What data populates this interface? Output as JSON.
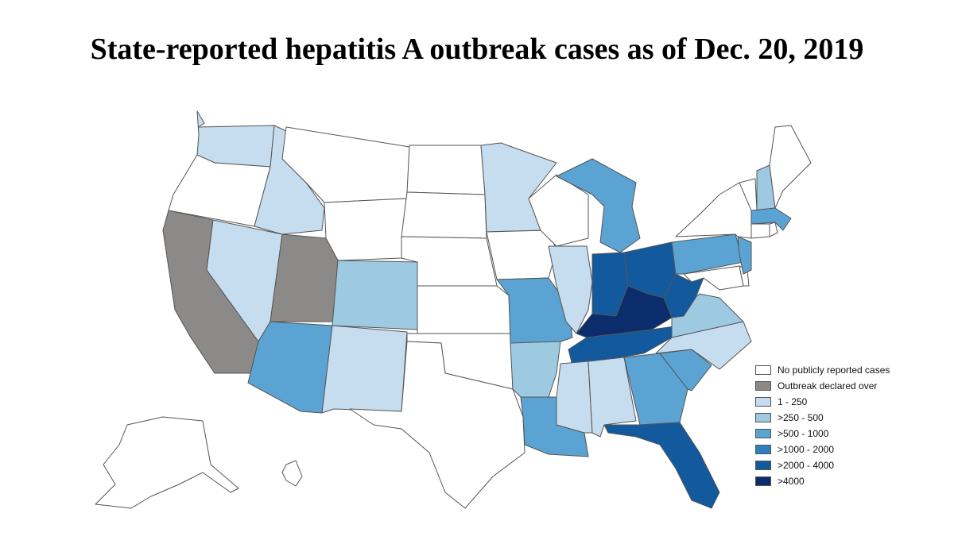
{
  "title": "State-reported hepatitis A outbreak cases as of Dec. 20, 2019",
  "legend": [
    {
      "label": "No publicly reported cases",
      "category": "none",
      "color": "#ffffff"
    },
    {
      "label": "Outbreak declared over",
      "category": "over",
      "color": "#8c8a89"
    },
    {
      "label": "1 - 250",
      "category": "c1",
      "color": "#c6dcef"
    },
    {
      "label": ">250 - 500",
      "category": "c2",
      "color": "#9ecae1"
    },
    {
      "label": ">500 - 1000",
      "category": "c3",
      "color": "#5ba3d2"
    },
    {
      "label": ">1000 - 2000",
      "category": "c4",
      "color": "#2f7ec0"
    },
    {
      "label": ">2000 - 4000",
      "category": "c5",
      "color": "#12599e"
    },
    {
      "label": ">4000",
      "category": "c6",
      "color": "#0b2d6b"
    }
  ],
  "states": {
    "WA": "c1",
    "OR": "none",
    "CA": "over",
    "NV": "c1",
    "ID": "c1",
    "MT": "none",
    "WY": "none",
    "UT": "over",
    "AZ": "c3",
    "CO": "c2",
    "NM": "c1",
    "ND": "none",
    "SD": "none",
    "NE": "none",
    "KS": "none",
    "OK": "none",
    "TX": "none",
    "MN": "c1",
    "IA": "none",
    "MO": "c3",
    "AR": "c2",
    "LA": "c3",
    "WI": "none",
    "IL": "c1",
    "MI": "c3",
    "IN": "c5",
    "OH": "c5",
    "KY": "c6",
    "TN": "c5",
    "MS": "c1",
    "AL": "c1",
    "GA": "c3",
    "FL": "c5",
    "SC": "c3",
    "NC": "c1",
    "VA": "c2",
    "WV": "c5",
    "PA": "c3",
    "NY": "none",
    "NJ": "c3",
    "DE": "none",
    "MD": "none",
    "VT": "none",
    "NH": "c2",
    "ME": "none",
    "MA": "c3",
    "CT": "none",
    "RI": "none",
    "AK": "none",
    "HI": "none"
  }
}
